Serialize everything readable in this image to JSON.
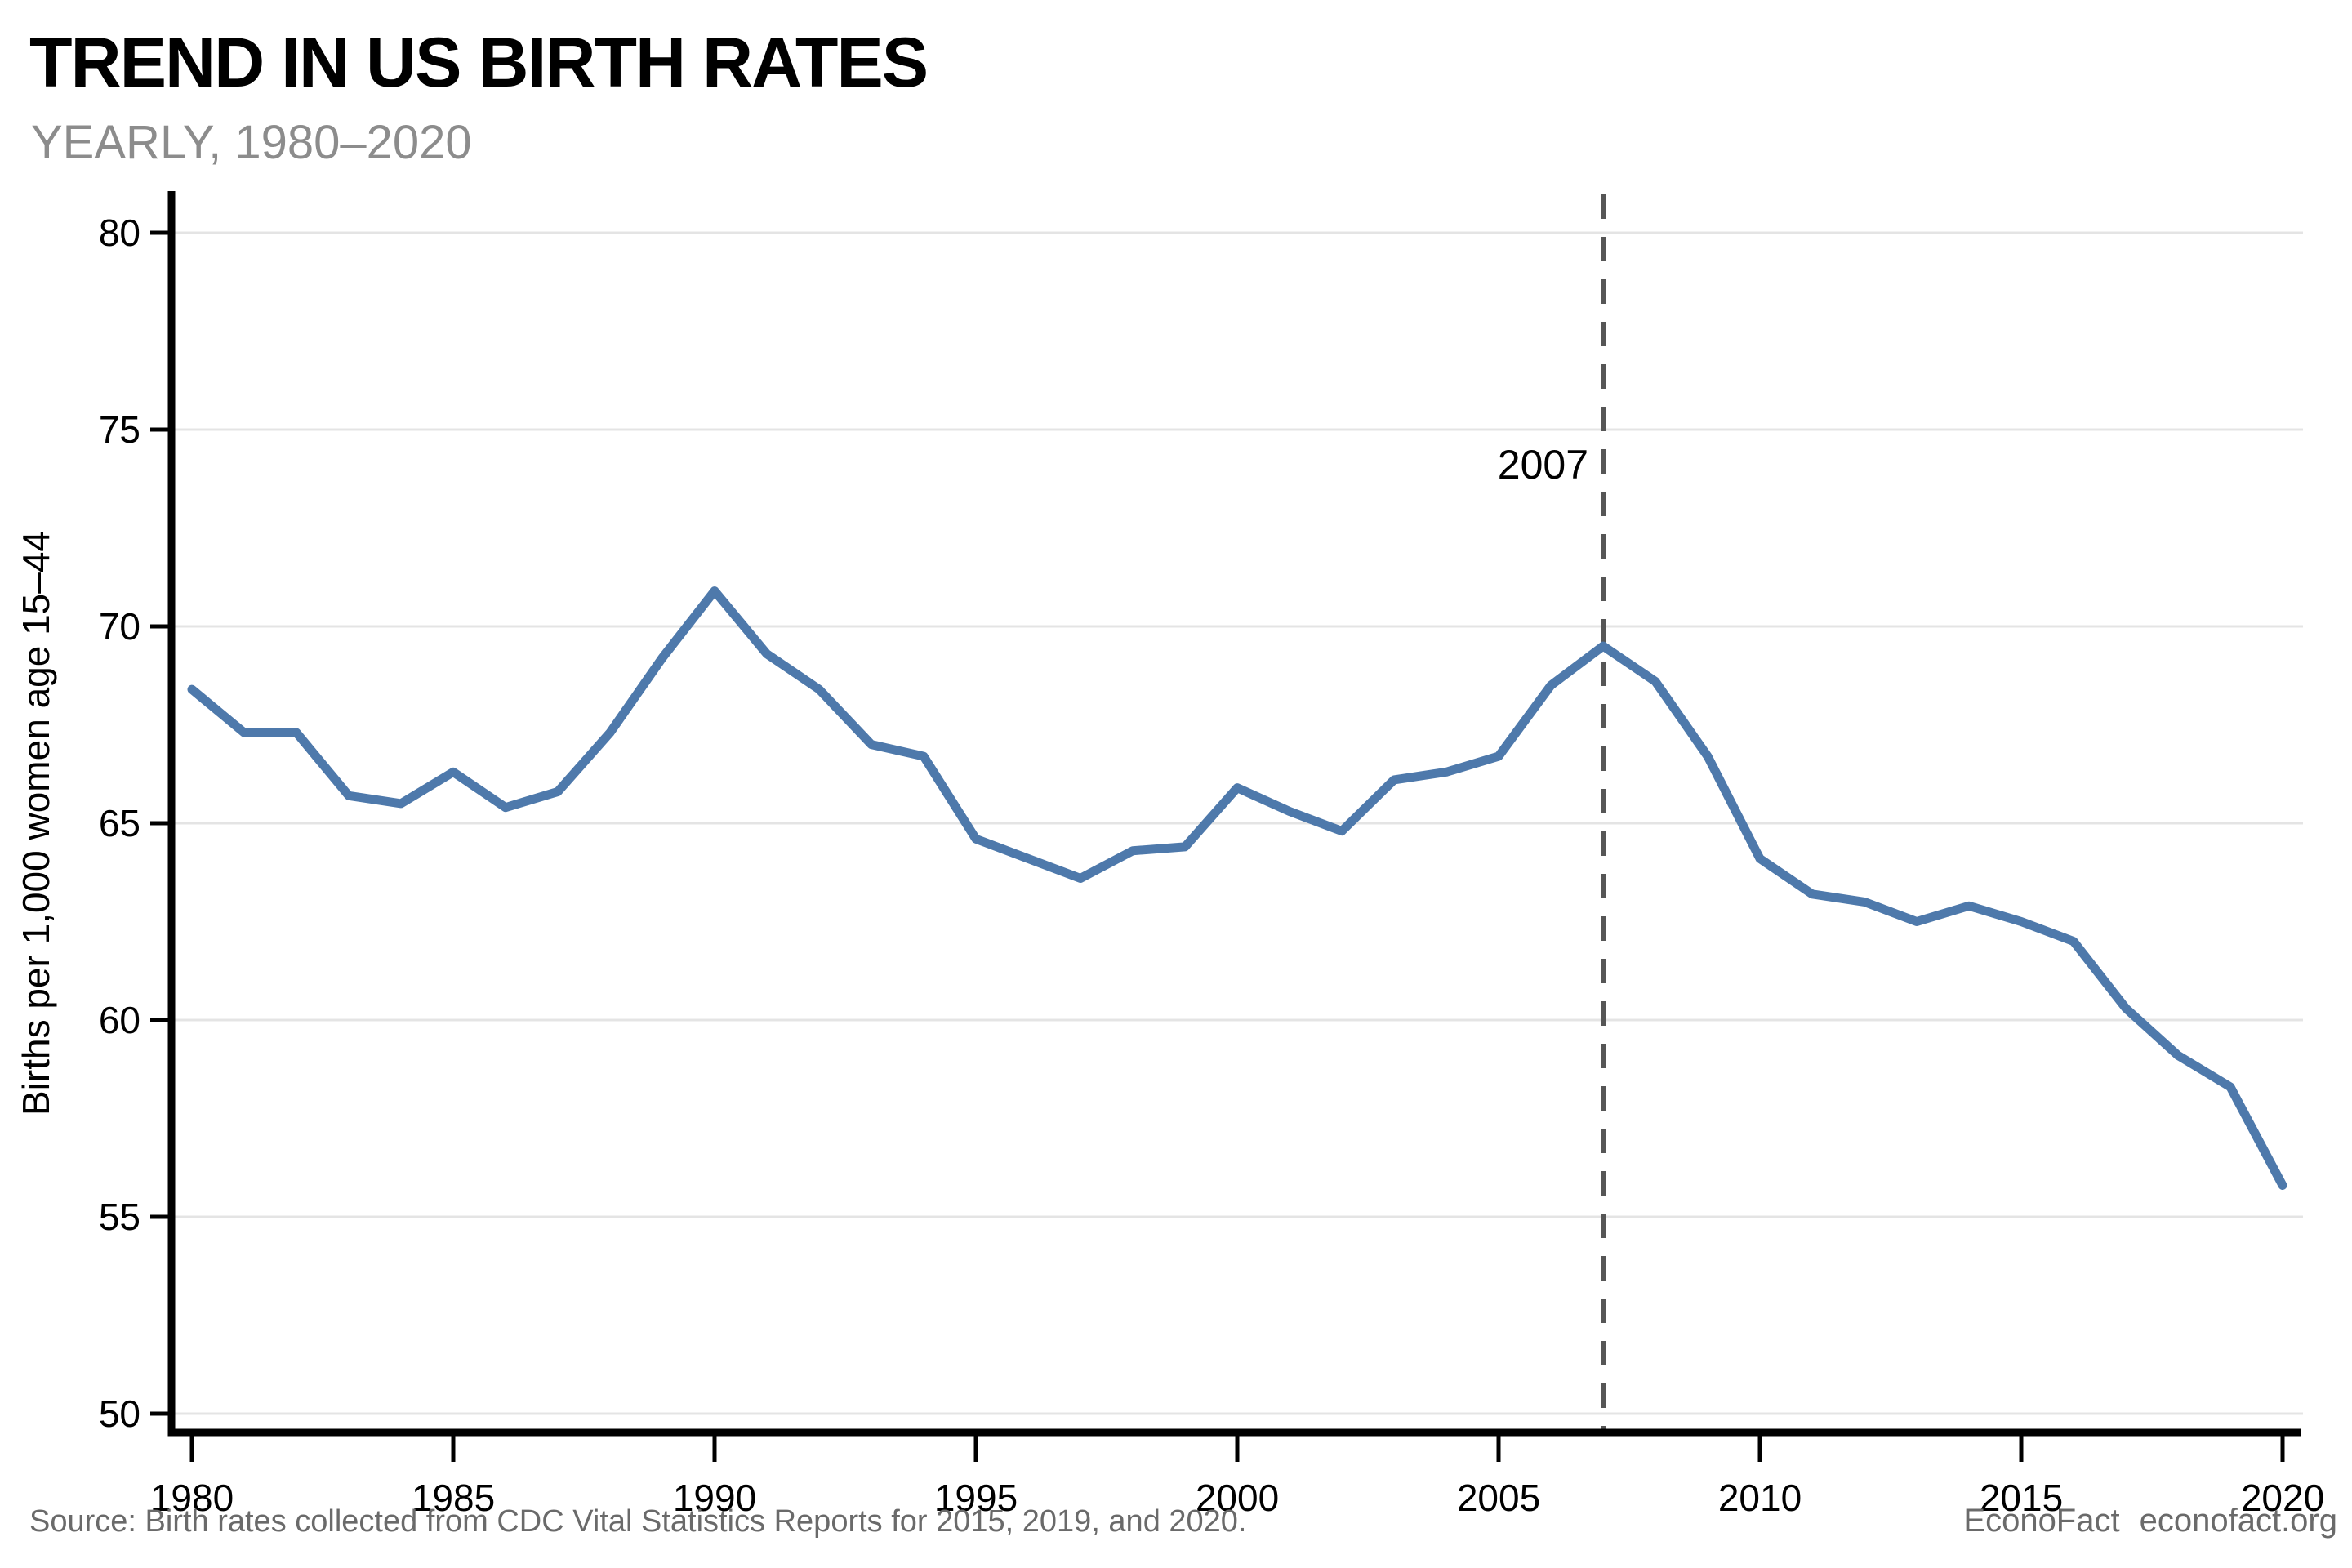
{
  "header": {
    "title": "TREND IN US BIRTH RATES",
    "subtitle": "YEARLY, 1980–2020"
  },
  "footer": {
    "source": "Source: Birth rates collected from CDC Vital Statistics Reports for 2015, 2019, and 2020.",
    "brand": "EconoFact",
    "brand_site": "econofact.org"
  },
  "colors": {
    "line": "#4e79ab",
    "grid": "#e4e4e4",
    "axis": "#000000",
    "tick_label": "#000000",
    "annotation_line": "#565656",
    "annotation_text": "#000000",
    "subtitle": "#8c8c8c",
    "footer_text": "#6a6a6a"
  },
  "chart_data": {
    "type": "line",
    "title": "TREND IN US BIRTH RATES",
    "subtitle": "YEARLY, 1980–2020",
    "xlabel": "",
    "ylabel": "Births per 1,000 women age 15–44",
    "xlim": [
      1980,
      2020
    ],
    "ylim": [
      50,
      80
    ],
    "x_ticks": [
      1980,
      1985,
      1990,
      1995,
      2000,
      2005,
      2010,
      2015,
      2020
    ],
    "y_ticks": [
      50,
      55,
      60,
      65,
      70,
      75,
      80
    ],
    "grid": "horizontal",
    "legend": "none",
    "annotation": {
      "label": "2007",
      "x": 2007
    },
    "x": [
      1980,
      1981,
      1982,
      1983,
      1984,
      1985,
      1986,
      1987,
      1988,
      1989,
      1990,
      1991,
      1992,
      1993,
      1994,
      1995,
      1996,
      1997,
      1998,
      1999,
      2000,
      2001,
      2002,
      2003,
      2004,
      2005,
      2006,
      2007,
      2008,
      2009,
      2010,
      2011,
      2012,
      2013,
      2014,
      2015,
      2016,
      2017,
      2018,
      2019,
      2020
    ],
    "series": [
      {
        "name": "US birth rate",
        "values": [
          68.4,
          67.3,
          67.3,
          65.7,
          65.5,
          66.3,
          65.4,
          65.8,
          67.3,
          69.2,
          70.9,
          69.3,
          68.4,
          67.0,
          66.7,
          64.6,
          64.1,
          63.6,
          64.3,
          64.4,
          65.9,
          65.3,
          64.8,
          66.1,
          66.3,
          66.7,
          68.5,
          69.5,
          68.6,
          66.7,
          64.1,
          63.2,
          63.0,
          62.5,
          62.9,
          62.5,
          62.0,
          60.3,
          59.1,
          58.3,
          55.8
        ]
      }
    ]
  }
}
